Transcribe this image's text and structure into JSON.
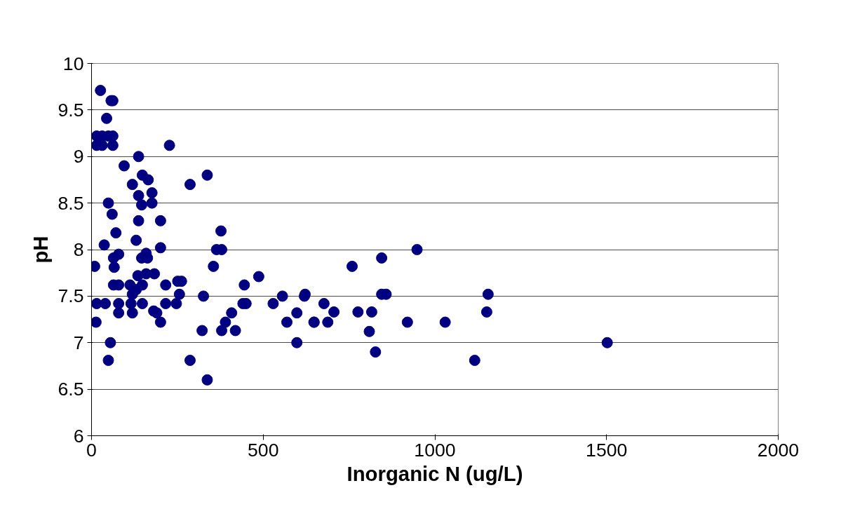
{
  "chart_data": {
    "type": "scatter",
    "xlabel": "Inorganic N (ug/L)",
    "ylabel": "pH",
    "x": [
      26,
      57,
      62,
      44,
      15,
      31,
      49,
      62,
      15,
      31,
      62,
      227,
      137,
      95,
      148,
      165,
      119,
      287,
      137,
      176,
      146,
      176,
      49,
      60,
      137,
      201,
      71,
      130,
      37,
      201,
      377,
      364,
      379,
      146,
      159,
      163,
      79,
      64,
      9,
      66,
      135,
      159,
      183,
      148,
      64,
      79,
      112,
      251,
      216,
      119,
      256,
      130,
      15,
      40,
      79,
      115,
      148,
      216,
      247,
      79,
      119,
      181,
      190,
      201,
      13,
      55,
      49,
      287,
      337,
      262,
      326,
      322,
      379,
      390,
      408,
      419,
      445,
      441,
      450,
      487,
      529,
      556,
      569,
      598,
      598,
      620,
      648,
      355,
      337,
      622,
      677,
      648,
      688,
      706,
      759,
      776,
      816,
      809,
      827,
      845,
      845,
      858,
      948,
      920,
      1030,
      1155,
      1151,
      1116,
      1502
    ],
    "values": [
      9.71,
      9.6,
      9.6,
      9.41,
      9.22,
      9.22,
      9.22,
      9.22,
      9.12,
      9.12,
      9.12,
      9.12,
      9.0,
      8.9,
      8.8,
      8.75,
      8.7,
      8.7,
      8.58,
      8.61,
      8.48,
      8.5,
      8.5,
      8.38,
      8.31,
      8.31,
      8.18,
      8.1,
      8.05,
      8.02,
      8.2,
      8.0,
      8.0,
      7.91,
      7.96,
      7.91,
      7.95,
      7.91,
      7.82,
      7.81,
      7.72,
      7.74,
      7.74,
      7.62,
      7.62,
      7.62,
      7.62,
      7.66,
      7.62,
      7.52,
      7.52,
      7.57,
      7.42,
      7.42,
      7.42,
      7.42,
      7.42,
      7.42,
      7.42,
      7.32,
      7.32,
      7.34,
      7.32,
      7.22,
      7.22,
      7.0,
      6.81,
      6.81,
      8.8,
      7.66,
      7.5,
      7.13,
      7.13,
      7.22,
      7.32,
      7.13,
      7.62,
      7.42,
      7.42,
      7.71,
      7.42,
      7.5,
      7.22,
      7.32,
      7.0,
      7.5,
      7.22,
      7.82,
      6.6,
      7.52,
      7.42,
      7.22,
      7.22,
      7.33,
      7.82,
      7.33,
      7.33,
      7.12,
      6.9,
      7.91,
      7.52,
      7.52,
      8.0,
      7.22,
      7.22,
      7.52,
      7.33,
      6.81,
      7.0
    ],
    "color": "#000080",
    "marker": "circle",
    "xlim": [
      0,
      2000
    ],
    "xticks": [
      0,
      500,
      1000,
      1500,
      2000
    ],
    "ylim": [
      6,
      10
    ],
    "yticks": [
      6,
      {
        "value": 6.5,
        "label": "6.5"
      },
      7,
      {
        "value": 7.5,
        "label": "7.5"
      },
      8,
      {
        "value": 8.5,
        "label": "8.5"
      },
      9,
      {
        "value": 9.5,
        "label": "9.5"
      },
      10
    ],
    "grid": "y"
  }
}
